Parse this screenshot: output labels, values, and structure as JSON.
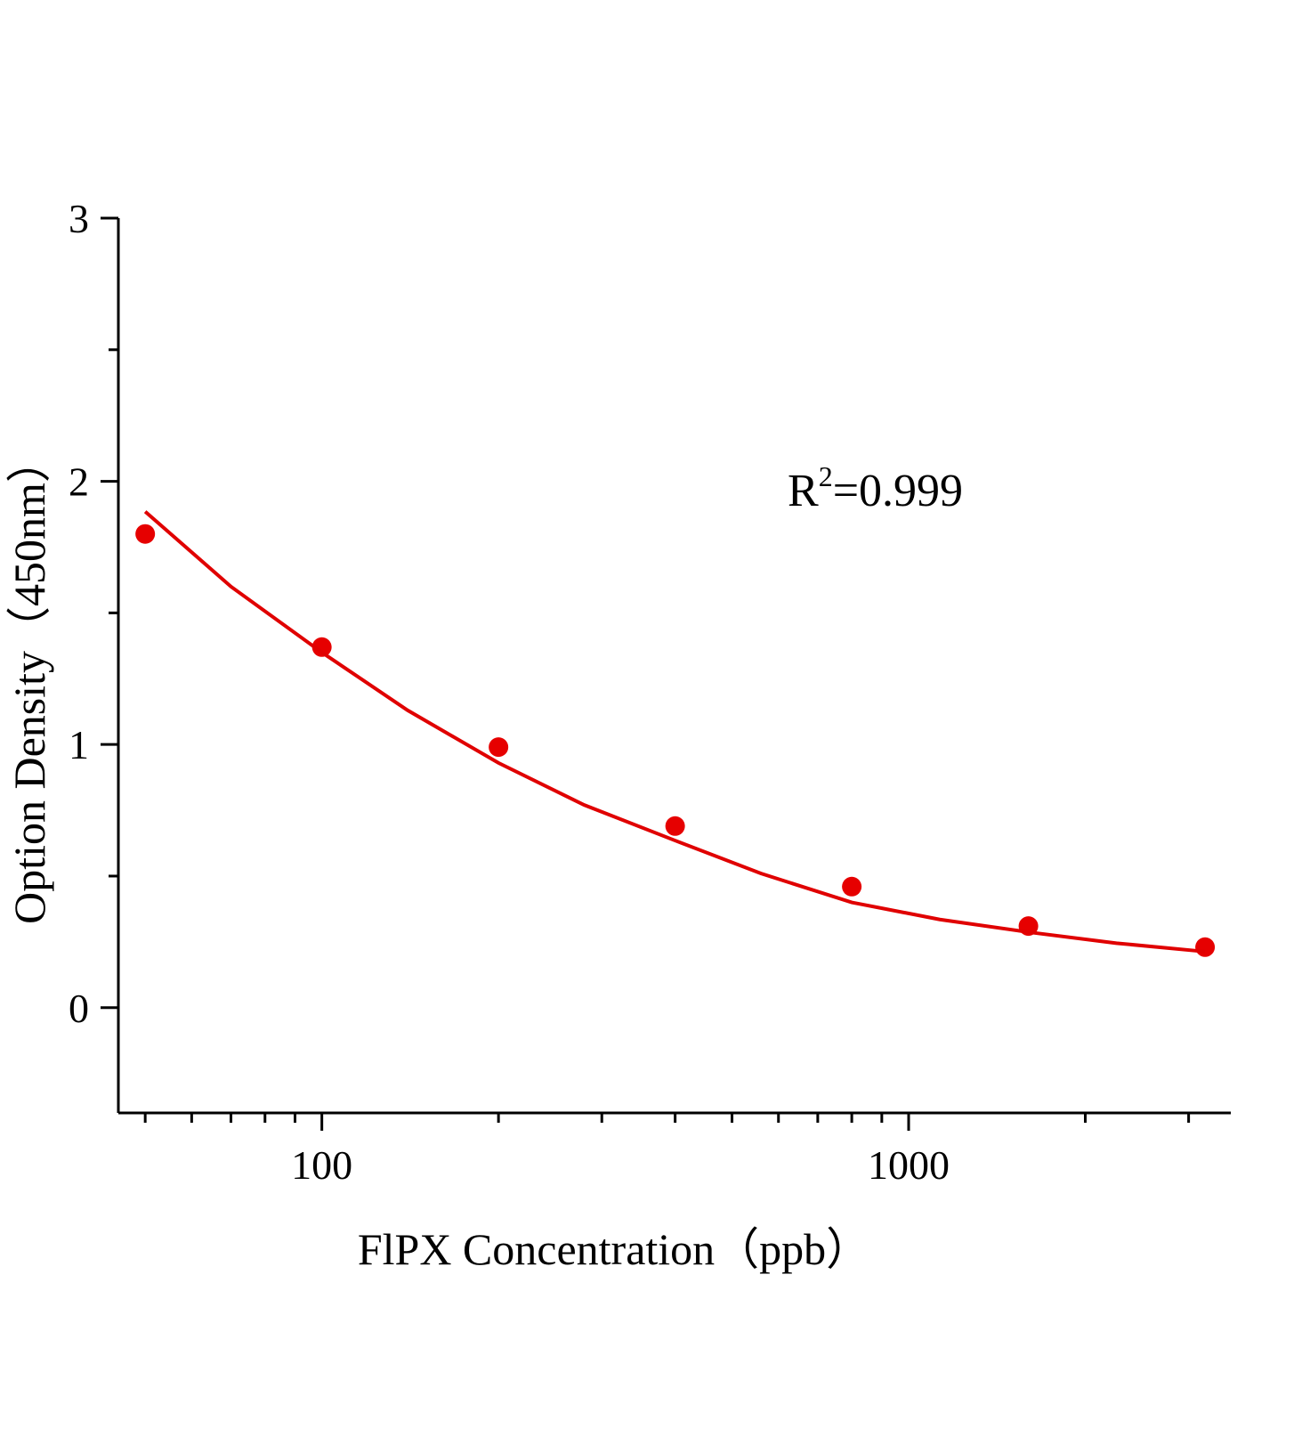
{
  "chart_data": {
    "type": "scatter",
    "x_label": "FlPX Concentration（ppb）",
    "y_label": "Option Density（450nm）",
    "annotation": [
      "R",
      "2",
      "=0.999"
    ],
    "x_scale": "log",
    "xlim": [
      45,
      3540
    ],
    "ylim": [
      -0.4,
      3
    ],
    "xticks": [
      100,
      1000
    ],
    "xminorticks": [
      50,
      60,
      70,
      80,
      90,
      200,
      300,
      400,
      500,
      600,
      700,
      800,
      900,
      2000,
      3000
    ],
    "yticks": [
      0,
      1,
      2,
      3
    ],
    "yminorticks": [
      -0.5,
      0.5,
      1.5,
      2.5
    ],
    "series": [
      {
        "kind": "points",
        "color": "#e60000",
        "x": [
          50,
          100,
          200,
          400,
          800,
          1600,
          3200
        ],
        "values": [
          1.8,
          1.37,
          0.99,
          0.69,
          0.46,
          0.31,
          0.23
        ]
      },
      {
        "kind": "fit",
        "color": "#e00000",
        "x": [
          50,
          70,
          100,
          140,
          200,
          280,
          400,
          560,
          800,
          1130,
          1600,
          2260,
          3200
        ],
        "values": [
          1.885,
          1.6,
          1.35,
          1.13,
          0.93,
          0.77,
          0.635,
          0.51,
          0.4,
          0.335,
          0.287,
          0.245,
          0.213
        ]
      }
    ]
  }
}
